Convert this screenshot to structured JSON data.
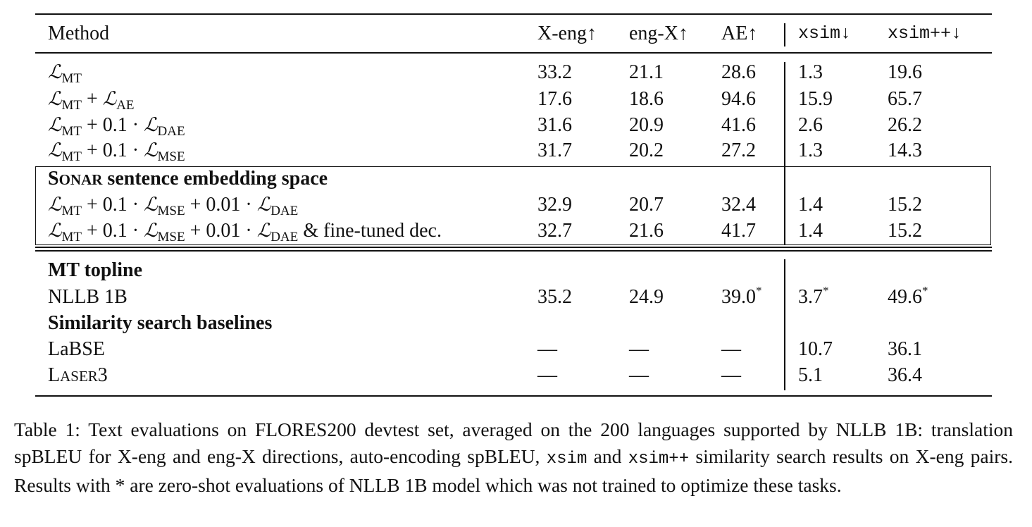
{
  "table": {
    "headers": {
      "method": "Method",
      "x_eng": "X-eng↑",
      "eng_x": "eng-X↑",
      "ae": "AE↑",
      "xsim": "xsim↓",
      "xsimpp": "xsim++↓"
    },
    "rows": [
      {
        "method": {
          "base": "ℒ",
          "sub": "MT",
          "text": ""
        },
        "values": [
          "33.2",
          "21.1",
          "28.6",
          "1.3",
          "19.6"
        ]
      },
      {
        "method": {
          "t1": " + ",
          "l2": "ℒ",
          "s2": "AE"
        },
        "values": [
          "17.6",
          "18.6",
          "94.6",
          "15.9",
          "65.7"
        ]
      },
      {
        "method": {
          "t1": " + 0.1 · ",
          "l2": "ℒ",
          "s2": "DAE"
        },
        "values": [
          "31.6",
          "20.9",
          "41.6",
          "2.6",
          "26.2"
        ]
      },
      {
        "method": {
          "t1": " + 0.1 · ",
          "l2": "ℒ",
          "s2": "MSE"
        },
        "values": [
          "31.7",
          "20.2",
          "27.2",
          "1.3",
          "14.3"
        ]
      },
      {
        "method": {
          "t1": " + 0.1 · ",
          "l2": "ℒ",
          "s2": "MSE",
          "t2": " + 0.01 · ",
          "l3": "ℒ",
          "s3": "DAE",
          "t3": ""
        },
        "values": [
          "32.9",
          "20.7",
          "32.4",
          "1.4",
          "15.2"
        ]
      },
      {
        "method": {
          "t1": " + 0.1 · ",
          "l2": "ℒ",
          "s2": "MSE",
          "t2": " + 0.01 · ",
          "l3": "ℒ",
          "s3": "DAE",
          "t3": " & fine-tuned dec."
        },
        "values": [
          "32.7",
          "21.6",
          "41.7",
          "1.4",
          "15.2"
        ]
      }
    ],
    "sonar_section": {
      "sc_first": "S",
      "sc_rest": "ONAR",
      "rest": " sentence embedding space"
    },
    "mt_topline_header": "MT topline",
    "nllb_row": {
      "method": "NLLB 1B",
      "values": [
        "35.2",
        "24.9",
        "39.0",
        "3.7",
        "49.6"
      ],
      "star": "*"
    },
    "similarity_header": "Similarity search baselines",
    "labse_row": {
      "method": "LaBSE",
      "values": [
        "—",
        "—",
        "—",
        "10.7",
        "36.1"
      ]
    },
    "laser_row": {
      "sc_first": "L",
      "sc_rest": "ASER",
      "suffix": "3",
      "values": [
        "—",
        "—",
        "—",
        "5.1",
        "36.4"
      ]
    }
  },
  "caption": {
    "p1": "Table 1: Text evaluations on FLORES200 devtest set, averaged on the 200 languages supported by NLLB 1B: translation spBLEU for X-eng and eng-X directions, auto-encoding spBLEU, ",
    "code1": "xsim",
    "p2": " and ",
    "code2": "xsim++",
    "p3": " similarity search results on X-eng pairs. Results with * are zero-shot evaluations of NLLB 1B model which was not trained to optimize these tasks."
  }
}
